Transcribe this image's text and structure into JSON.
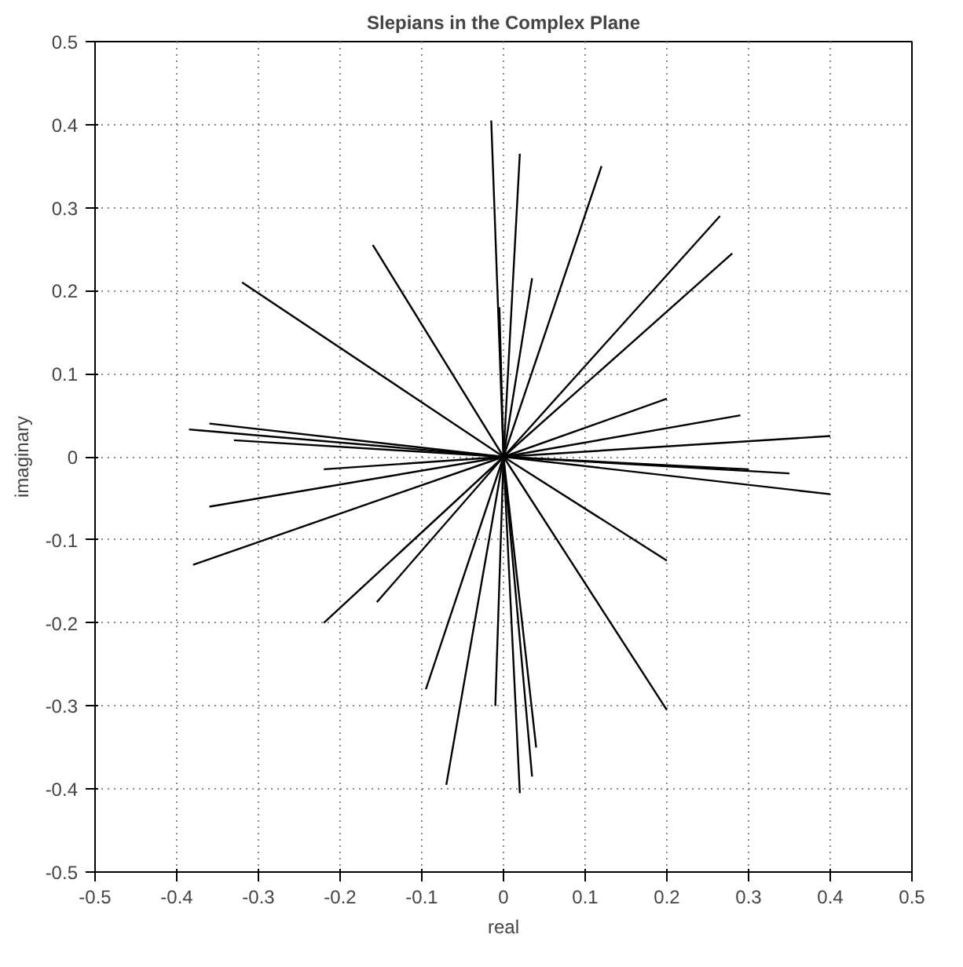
{
  "chart_data": {
    "type": "line",
    "title": "Slepians in the Complex Plane",
    "xlabel": "real",
    "ylabel": "imaginary",
    "series": [
      {
        "color": "#000000",
        "x": [
          -0.32,
          0,
          0.2
        ],
        "values": [
          0.21,
          0,
          -0.125
        ]
      },
      {
        "color": "#000000",
        "x": [
          -0.16,
          0,
          0.2
        ],
        "values": [
          0.255,
          0,
          -0.305
        ]
      },
      {
        "color": "#000000",
        "x": [
          -0.015,
          0,
          0.02
        ],
        "values": [
          0.405,
          0,
          -0.405
        ]
      },
      {
        "color": "#000000",
        "x": [
          -0.005,
          0,
          0.035
        ],
        "values": [
          0.18,
          0,
          -0.385
        ]
      },
      {
        "color": "#000000",
        "x": [
          0.02,
          0,
          -0.01
        ],
        "values": [
          0.365,
          0,
          -0.3
        ]
      },
      {
        "color": "#000000",
        "x": [
          0.035,
          0,
          -0.07
        ],
        "values": [
          0.215,
          0,
          -0.395
        ]
      },
      {
        "color": "#000000",
        "x": [
          0.12,
          0,
          -0.095
        ],
        "values": [
          0.35,
          0,
          -0.28
        ]
      },
      {
        "color": "#000000",
        "x": [
          0.265,
          0,
          -0.155
        ],
        "values": [
          0.29,
          0,
          -0.175
        ]
      },
      {
        "color": "#000000",
        "x": [
          0.28,
          0,
          -0.22
        ],
        "values": [
          0.245,
          0,
          -0.2
        ]
      },
      {
        "color": "#000000",
        "x": [
          0.2,
          0,
          -0.38
        ],
        "values": [
          0.07,
          0,
          -0.13
        ]
      },
      {
        "color": "#000000",
        "x": [
          0.29,
          0,
          -0.36
        ],
        "values": [
          0.05,
          0,
          -0.06
        ]
      },
      {
        "color": "#000000",
        "x": [
          0.4,
          0,
          -0.22
        ],
        "values": [
          0.025,
          0,
          -0.015
        ]
      },
      {
        "color": "#000000",
        "x": [
          0.35,
          0,
          -0.33
        ],
        "values": [
          -0.02,
          0,
          0.02
        ]
      },
      {
        "color": "#000000",
        "x": [
          0.4,
          0,
          -0.36
        ],
        "values": [
          -0.045,
          0,
          0.04
        ]
      },
      {
        "color": "#000000",
        "x": [
          0.3,
          0,
          -0.385
        ],
        "values": [
          -0.015,
          0,
          0.033
        ]
      },
      {
        "color": "#000000",
        "x": [
          0,
          0.04
        ],
        "values": [
          0,
          -0.35
        ]
      }
    ],
    "xlim": [
      -0.5,
      0.5
    ],
    "ylim": [
      -0.5,
      0.5
    ],
    "xticks": [
      -0.5,
      -0.4,
      -0.3,
      -0.2,
      -0.1,
      0,
      0.1,
      0.2,
      0.3,
      0.4,
      0.5
    ],
    "yticks": [
      -0.5,
      -0.4,
      -0.3,
      -0.2,
      -0.1,
      0,
      0.1,
      0.2,
      0.3,
      0.4,
      0.5
    ],
    "grid": true,
    "line_style": "solid",
    "marker": "none"
  }
}
